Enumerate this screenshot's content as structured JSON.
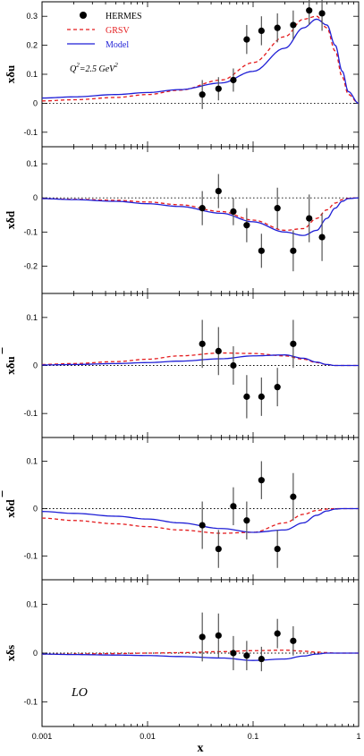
{
  "figure": {
    "x_axis_label": "x",
    "x_ticks": [
      "0.001",
      "0.01",
      "0.1",
      "1"
    ],
    "colors": {
      "hermes": "#000000",
      "grsv": "#e41a1c",
      "model": "#1f1fd6",
      "zero_line": "#000000"
    },
    "legend": [
      {
        "key": "hermes",
        "label": "HERMES",
        "style": "marker"
      },
      {
        "key": "grsv",
        "label": "GRSV",
        "style": "dashed"
      },
      {
        "key": "model",
        "label": "Model",
        "style": "solid"
      }
    ],
    "scale_annotation": {
      "main": "Q",
      "sup1": "2",
      "mid": "=2.5 GeV",
      "sup2": "2"
    },
    "order_annotation": "LO"
  },
  "chart_data": [
    {
      "type": "line",
      "panel": "u",
      "ylabel_main": "xδu",
      "xscale": "log",
      "xlim": [
        0.001,
        1
      ],
      "ylim": [
        -0.15,
        0.35
      ],
      "yticks": [
        "0.3",
        "0.2",
        "0.1",
        "0",
        "-0.1"
      ],
      "grid": false,
      "legend_position": "top-left",
      "hermes": [
        {
          "x": 0.033,
          "y": 0.03,
          "err": 0.05
        },
        {
          "x": 0.047,
          "y": 0.05,
          "err": 0.04
        },
        {
          "x": 0.065,
          "y": 0.08,
          "err": 0.04
        },
        {
          "x": 0.087,
          "y": 0.22,
          "err": 0.05
        },
        {
          "x": 0.12,
          "y": 0.25,
          "err": 0.05
        },
        {
          "x": 0.17,
          "y": 0.26,
          "err": 0.05
        },
        {
          "x": 0.24,
          "y": 0.27,
          "err": 0.05
        },
        {
          "x": 0.34,
          "y": 0.32,
          "err": 0.05
        },
        {
          "x": 0.45,
          "y": 0.31,
          "err": 0.06
        }
      ],
      "series": [
        {
          "key": "grsv",
          "x": [
            0.001,
            0.002,
            0.005,
            0.01,
            0.02,
            0.05,
            0.1,
            0.2,
            0.3,
            0.4,
            0.5,
            0.6,
            0.7,
            0.8,
            1.0
          ],
          "values": [
            0.008,
            0.012,
            0.02,
            0.03,
            0.045,
            0.08,
            0.14,
            0.23,
            0.29,
            0.3,
            0.26,
            0.18,
            0.09,
            0.03,
            0.0
          ]
        },
        {
          "key": "model",
          "x": [
            0.001,
            0.002,
            0.005,
            0.01,
            0.02,
            0.05,
            0.1,
            0.2,
            0.3,
            0.4,
            0.5,
            0.6,
            0.7,
            0.8,
            1.0
          ],
          "values": [
            0.018,
            0.022,
            0.03,
            0.037,
            0.047,
            0.07,
            0.11,
            0.19,
            0.26,
            0.29,
            0.27,
            0.2,
            0.11,
            0.04,
            0.0
          ]
        }
      ]
    },
    {
      "type": "line",
      "panel": "d",
      "ylabel_main": "xδd",
      "xscale": "log",
      "xlim": [
        0.001,
        1
      ],
      "ylim": [
        -0.28,
        0.15
      ],
      "yticks": [
        "0.1",
        "0",
        "-0.1",
        "-0.2"
      ],
      "grid": false,
      "hermes": [
        {
          "x": 0.033,
          "y": -0.03,
          "err": 0.05
        },
        {
          "x": 0.047,
          "y": 0.02,
          "err": 0.05
        },
        {
          "x": 0.065,
          "y": -0.04,
          "err": 0.04
        },
        {
          "x": 0.087,
          "y": -0.08,
          "err": 0.05
        },
        {
          "x": 0.12,
          "y": -0.155,
          "err": 0.05
        },
        {
          "x": 0.17,
          "y": -0.03,
          "err": 0.06
        },
        {
          "x": 0.24,
          "y": -0.155,
          "err": 0.06
        },
        {
          "x": 0.34,
          "y": -0.06,
          "err": 0.07
        },
        {
          "x": 0.45,
          "y": -0.115,
          "err": 0.07
        }
      ],
      "series": [
        {
          "key": "grsv",
          "x": [
            0.001,
            0.002,
            0.005,
            0.01,
            0.02,
            0.05,
            0.1,
            0.2,
            0.3,
            0.4,
            0.5,
            0.6,
            0.7,
            0.8,
            1.0
          ],
          "values": [
            -0.002,
            -0.004,
            -0.007,
            -0.012,
            -0.02,
            -0.04,
            -0.065,
            -0.095,
            -0.09,
            -0.06,
            -0.035,
            -0.015,
            -0.005,
            -0.001,
            0.0
          ]
        },
        {
          "key": "model",
          "x": [
            0.001,
            0.002,
            0.005,
            0.01,
            0.02,
            0.05,
            0.1,
            0.2,
            0.3,
            0.4,
            0.5,
            0.6,
            0.7,
            0.8,
            1.0
          ],
          "values": [
            -0.002,
            -0.005,
            -0.01,
            -0.017,
            -0.025,
            -0.045,
            -0.07,
            -0.1,
            -0.11,
            -0.095,
            -0.06,
            -0.03,
            -0.01,
            -0.002,
            0.0
          ]
        }
      ]
    },
    {
      "type": "line",
      "panel": "ubar",
      "ylabel_main": "xδu",
      "ylabel_bar": true,
      "xscale": "log",
      "xlim": [
        0.001,
        1
      ],
      "ylim": [
        -0.15,
        0.15
      ],
      "yticks": [
        "0.1",
        "0",
        "-0.1"
      ],
      "grid": false,
      "hermes": [
        {
          "x": 0.033,
          "y": 0.045,
          "err": 0.05
        },
        {
          "x": 0.047,
          "y": 0.03,
          "err": 0.05
        },
        {
          "x": 0.065,
          "y": 0.0,
          "err": 0.04
        },
        {
          "x": 0.087,
          "y": -0.065,
          "err": 0.045
        },
        {
          "x": 0.12,
          "y": -0.065,
          "err": 0.04
        },
        {
          "x": 0.17,
          "y": -0.045,
          "err": 0.04
        },
        {
          "x": 0.24,
          "y": 0.045,
          "err": 0.05
        }
      ],
      "series": [
        {
          "key": "grsv",
          "x": [
            0.001,
            0.002,
            0.005,
            0.01,
            0.02,
            0.05,
            0.1,
            0.2,
            0.3,
            0.4,
            0.5,
            0.6,
            0.7,
            0.8,
            1.0
          ],
          "values": [
            0.002,
            0.004,
            0.008,
            0.013,
            0.02,
            0.026,
            0.025,
            0.02,
            0.013,
            0.006,
            0.002,
            0.0,
            0.0,
            0.0,
            0.0
          ]
        },
        {
          "key": "model",
          "x": [
            0.001,
            0.002,
            0.005,
            0.01,
            0.02,
            0.05,
            0.1,
            0.2,
            0.3,
            0.4,
            0.5,
            0.6,
            0.7,
            0.8,
            1.0
          ],
          "values": [
            0.001,
            0.002,
            0.004,
            0.006,
            0.009,
            0.014,
            0.02,
            0.022,
            0.015,
            0.007,
            0.002,
            0.0,
            0.0,
            0.0,
            0.0
          ]
        }
      ]
    },
    {
      "type": "line",
      "panel": "dbar",
      "ylabel_main": "xδd",
      "ylabel_bar": true,
      "xscale": "log",
      "xlim": [
        0.001,
        1
      ],
      "ylim": [
        -0.15,
        0.15
      ],
      "yticks": [
        "0.1",
        "0",
        "-0.1"
      ],
      "grid": false,
      "hermes": [
        {
          "x": 0.033,
          "y": -0.035,
          "err": 0.05
        },
        {
          "x": 0.047,
          "y": -0.085,
          "err": 0.04
        },
        {
          "x": 0.065,
          "y": 0.005,
          "err": 0.04
        },
        {
          "x": 0.087,
          "y": -0.025,
          "err": 0.04
        },
        {
          "x": 0.12,
          "y": 0.06,
          "err": 0.04
        },
        {
          "x": 0.17,
          "y": -0.085,
          "err": 0.04
        },
        {
          "x": 0.24,
          "y": 0.025,
          "err": 0.05
        }
      ],
      "series": [
        {
          "key": "grsv",
          "x": [
            0.001,
            0.002,
            0.005,
            0.01,
            0.02,
            0.05,
            0.1,
            0.2,
            0.3,
            0.4,
            0.5,
            0.6,
            0.7,
            0.8,
            1.0
          ],
          "values": [
            -0.02,
            -0.025,
            -0.032,
            -0.038,
            -0.045,
            -0.052,
            -0.05,
            -0.03,
            -0.012,
            -0.004,
            -0.001,
            0.0,
            0.0,
            0.0,
            0.0
          ]
        },
        {
          "key": "model",
          "x": [
            0.001,
            0.002,
            0.005,
            0.01,
            0.02,
            0.05,
            0.1,
            0.2,
            0.3,
            0.4,
            0.5,
            0.6,
            0.7,
            0.8,
            1.0
          ],
          "values": [
            -0.006,
            -0.01,
            -0.016,
            -0.022,
            -0.03,
            -0.042,
            -0.05,
            -0.045,
            -0.03,
            -0.014,
            -0.005,
            -0.001,
            0.0,
            0.0,
            0.0
          ]
        }
      ]
    },
    {
      "type": "line",
      "panel": "s",
      "ylabel_main": "xδs",
      "xscale": "log",
      "xlim": [
        0.001,
        1
      ],
      "ylim": [
        -0.15,
        0.15
      ],
      "yticks": [
        "0.1",
        "0",
        "-0.1"
      ],
      "grid": false,
      "hermes": [
        {
          "x": 0.033,
          "y": 0.033,
          "err": 0.05
        },
        {
          "x": 0.047,
          "y": 0.036,
          "err": 0.045
        },
        {
          "x": 0.065,
          "y": 0.0,
          "err": 0.035
        },
        {
          "x": 0.087,
          "y": -0.005,
          "err": 0.03
        },
        {
          "x": 0.12,
          "y": -0.012,
          "err": 0.025
        },
        {
          "x": 0.17,
          "y": 0.04,
          "err": 0.03
        },
        {
          "x": 0.24,
          "y": 0.025,
          "err": 0.03
        }
      ],
      "series": [
        {
          "key": "grsv",
          "x": [
            0.001,
            0.002,
            0.005,
            0.01,
            0.02,
            0.05,
            0.1,
            0.2,
            0.3,
            0.4,
            0.5,
            0.6,
            0.7,
            0.8,
            1.0
          ],
          "values": [
            -0.002,
            -0.002,
            -0.001,
            0.0,
            0.001,
            0.003,
            0.005,
            0.006,
            0.004,
            0.002,
            0.001,
            0.0,
            0.0,
            0.0,
            0.0
          ]
        },
        {
          "key": "model",
          "x": [
            0.001,
            0.002,
            0.005,
            0.01,
            0.02,
            0.05,
            0.1,
            0.2,
            0.3,
            0.4,
            0.5,
            0.6,
            0.7,
            0.8,
            1.0
          ],
          "values": [
            -0.002,
            -0.003,
            -0.004,
            -0.005,
            -0.007,
            -0.01,
            -0.015,
            -0.012,
            -0.006,
            -0.002,
            0.0,
            0.0,
            0.0,
            0.0,
            0.0
          ]
        }
      ]
    }
  ]
}
